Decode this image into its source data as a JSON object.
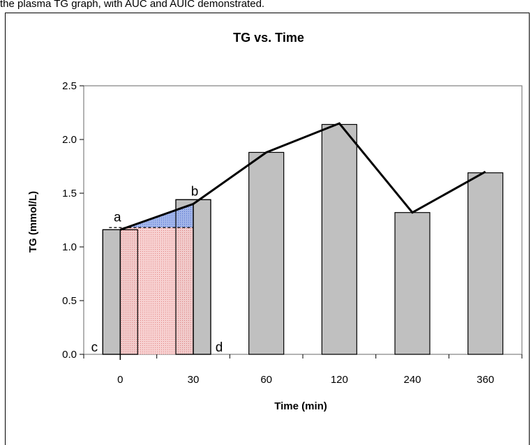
{
  "page": {
    "caption": "the plasma TG graph, with AUC and AUIC demonstrated."
  },
  "chart_data": {
    "type": "bar",
    "title": "TG vs. Time",
    "xlabel": "Time (min)",
    "ylabel": "TG (mmol/L)",
    "categories": [
      "0",
      "30",
      "60",
      "120",
      "240",
      "360"
    ],
    "values": [
      1.16,
      1.44,
      1.88,
      2.14,
      1.32,
      1.69
    ],
    "line_values": [
      1.16,
      1.4,
      1.88,
      2.15,
      1.32,
      1.7
    ],
    "ylim": [
      0,
      2.5
    ],
    "yticks": [
      0.0,
      0.5,
      1.0,
      1.5,
      2.0,
      2.5
    ],
    "ytick_labels": [
      "0.0",
      "0.5",
      "1.0",
      "1.5",
      "2.0",
      "2.5"
    ],
    "baseline_value": 1.18,
    "grid": false,
    "annotations": [
      "a",
      "b",
      "c",
      "d"
    ],
    "colors": {
      "bar_fill": "#c0c0c0",
      "line": "#000000",
      "auic_fill": "#7f9ae0",
      "auc_fill": "#f0a8a8"
    }
  }
}
